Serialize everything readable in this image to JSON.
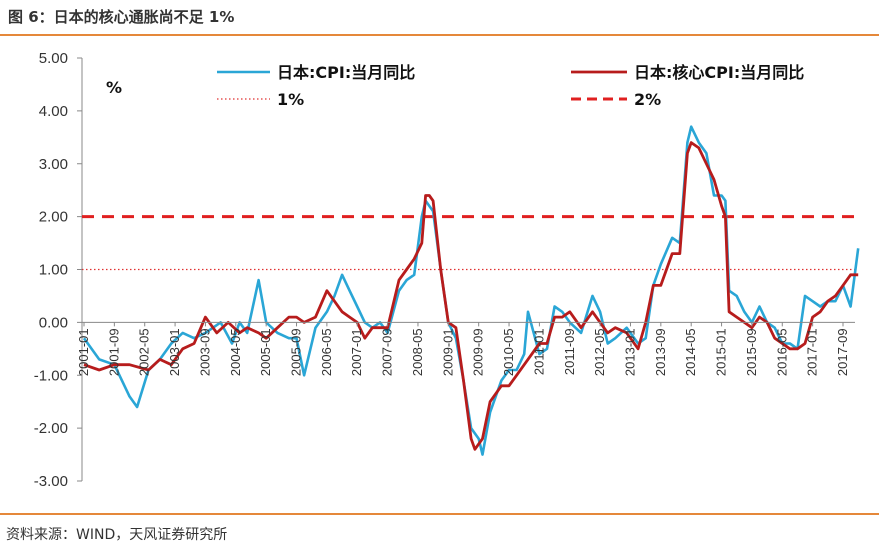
{
  "header": {
    "title": "图 6：日本的核心通胀尚不足 1%"
  },
  "footer": {
    "source": "资料来源：WIND，天风证券研究所"
  },
  "chart_data": {
    "type": "line",
    "unit_label": "%",
    "ylim": [
      -3,
      5
    ],
    "yticks": [
      "5.00",
      "4.00",
      "3.00",
      "2.00",
      "1.00",
      "0.00",
      "-1.00",
      "-2.00",
      "-3.00"
    ],
    "xticks": [
      "2001-01",
      "2001-09",
      "2002-05",
      "2003-01",
      "2003-09",
      "2004-05",
      "2005-01",
      "2005-09",
      "2006-05",
      "2007-01",
      "2007-09",
      "2008-05",
      "2009-01",
      "2009-09",
      "2010-05",
      "2011-01",
      "2011-09",
      "2012-05",
      "2013-01",
      "2013-09",
      "2014-05",
      "2015-01",
      "2015-09",
      "2016-05",
      "2017-01",
      "2017-09"
    ],
    "grid": false,
    "legend_position": "top",
    "series": [
      {
        "name": "日本:CPI:当月同比",
        "color": "#2aa6d6",
        "points": [
          [
            "2001-01",
            -0.3
          ],
          [
            "2001-05",
            -0.7
          ],
          [
            "2001-09",
            -0.8
          ],
          [
            "2002-01",
            -1.4
          ],
          [
            "2002-03",
            -1.6
          ],
          [
            "2002-06",
            -0.9
          ],
          [
            "2002-09",
            -0.7
          ],
          [
            "2002-12",
            -0.4
          ],
          [
            "2003-03",
            -0.2
          ],
          [
            "2003-06",
            -0.3
          ],
          [
            "2003-09",
            -0.2
          ],
          [
            "2004-01",
            0.0
          ],
          [
            "2004-04",
            -0.4
          ],
          [
            "2004-06",
            0.0
          ],
          [
            "2004-08",
            -0.2
          ],
          [
            "2004-11",
            0.8
          ],
          [
            "2005-01",
            0.0
          ],
          [
            "2005-04",
            -0.2
          ],
          [
            "2005-07",
            -0.3
          ],
          [
            "2005-09",
            -0.3
          ],
          [
            "2005-11",
            -1.0
          ],
          [
            "2006-02",
            -0.1
          ],
          [
            "2006-05",
            0.2
          ],
          [
            "2006-07",
            0.5
          ],
          [
            "2006-09",
            0.9
          ],
          [
            "2006-11",
            0.6
          ],
          [
            "2007-01",
            0.3
          ],
          [
            "2007-03",
            0.0
          ],
          [
            "2007-05",
            -0.1
          ],
          [
            "2007-07",
            0.0
          ],
          [
            "2007-09",
            -0.2
          ],
          [
            "2007-12",
            0.6
          ],
          [
            "2008-02",
            0.8
          ],
          [
            "2008-04",
            0.9
          ],
          [
            "2008-06",
            2.0
          ],
          [
            "2008-07",
            2.3
          ],
          [
            "2008-09",
            2.1
          ],
          [
            "2008-11",
            1.0
          ],
          [
            "2009-01",
            0.0
          ],
          [
            "2009-03",
            -0.3
          ],
          [
            "2009-05",
            -1.1
          ],
          [
            "2009-07",
            -2.0
          ],
          [
            "2009-09",
            -2.2
          ],
          [
            "2009-10",
            -2.5
          ],
          [
            "2009-12",
            -1.7
          ],
          [
            "2010-03",
            -1.1
          ],
          [
            "2010-05",
            -0.9
          ],
          [
            "2010-07",
            -0.9
          ],
          [
            "2010-09",
            -0.6
          ],
          [
            "2010-10",
            0.2
          ],
          [
            "2011-01",
            -0.6
          ],
          [
            "2011-03",
            -0.5
          ],
          [
            "2011-05",
            0.3
          ],
          [
            "2011-07",
            0.2
          ],
          [
            "2011-09",
            0.0
          ],
          [
            "2011-12",
            -0.2
          ],
          [
            "2012-03",
            0.5
          ],
          [
            "2012-05",
            0.2
          ],
          [
            "2012-07",
            -0.4
          ],
          [
            "2012-09",
            -0.3
          ],
          [
            "2012-12",
            -0.1
          ],
          [
            "2013-03",
            -0.4
          ],
          [
            "2013-05",
            -0.3
          ],
          [
            "2013-07",
            0.7
          ],
          [
            "2013-09",
            1.1
          ],
          [
            "2013-12",
            1.6
          ],
          [
            "2014-02",
            1.5
          ],
          [
            "2014-04",
            3.4
          ],
          [
            "2014-05",
            3.7
          ],
          [
            "2014-07",
            3.4
          ],
          [
            "2014-09",
            3.2
          ],
          [
            "2014-11",
            2.4
          ],
          [
            "2015-01",
            2.4
          ],
          [
            "2015-02",
            2.3
          ],
          [
            "2015-03",
            0.6
          ],
          [
            "2015-05",
            0.5
          ],
          [
            "2015-07",
            0.2
          ],
          [
            "2015-09",
            0.0
          ],
          [
            "2015-11",
            0.3
          ],
          [
            "2016-01",
            0.0
          ],
          [
            "2016-03",
            -0.1
          ],
          [
            "2016-05",
            -0.4
          ],
          [
            "2016-07",
            -0.4
          ],
          [
            "2016-09",
            -0.5
          ],
          [
            "2016-11",
            0.5
          ],
          [
            "2017-01",
            0.4
          ],
          [
            "2017-03",
            0.3
          ],
          [
            "2017-05",
            0.4
          ],
          [
            "2017-07",
            0.4
          ],
          [
            "2017-09",
            0.7
          ],
          [
            "2017-11",
            0.3
          ],
          [
            "2018-01",
            1.4
          ]
        ]
      },
      {
        "name": "日本:核心CPI:当月同比",
        "color": "#b71c1c",
        "points": [
          [
            "2001-01",
            -0.8
          ],
          [
            "2001-05",
            -0.9
          ],
          [
            "2001-09",
            -0.8
          ],
          [
            "2002-01",
            -0.8
          ],
          [
            "2002-06",
            -0.9
          ],
          [
            "2002-09",
            -0.7
          ],
          [
            "2002-12",
            -0.8
          ],
          [
            "2003-03",
            -0.5
          ],
          [
            "2003-06",
            -0.4
          ],
          [
            "2003-09",
            0.1
          ],
          [
            "2003-12",
            -0.2
          ],
          [
            "2004-03",
            0.0
          ],
          [
            "2004-06",
            -0.2
          ],
          [
            "2004-08",
            -0.1
          ],
          [
            "2004-11",
            -0.2
          ],
          [
            "2005-01",
            -0.3
          ],
          [
            "2005-04",
            -0.1
          ],
          [
            "2005-07",
            0.1
          ],
          [
            "2005-09",
            0.1
          ],
          [
            "2005-11",
            0.0
          ],
          [
            "2006-02",
            0.1
          ],
          [
            "2006-05",
            0.6
          ],
          [
            "2006-09",
            0.2
          ],
          [
            "2006-11",
            0.1
          ],
          [
            "2007-01",
            0.0
          ],
          [
            "2007-03",
            -0.3
          ],
          [
            "2007-05",
            -0.1
          ],
          [
            "2007-07",
            -0.1
          ],
          [
            "2007-09",
            -0.1
          ],
          [
            "2007-12",
            0.8
          ],
          [
            "2008-02",
            1.0
          ],
          [
            "2008-04",
            1.2
          ],
          [
            "2008-06",
            1.5
          ],
          [
            "2008-07",
            2.4
          ],
          [
            "2008-08",
            2.4
          ],
          [
            "2008-09",
            2.3
          ],
          [
            "2008-11",
            1.0
          ],
          [
            "2009-01",
            0.0
          ],
          [
            "2009-03",
            -0.1
          ],
          [
            "2009-05",
            -1.1
          ],
          [
            "2009-07",
            -2.2
          ],
          [
            "2009-08",
            -2.4
          ],
          [
            "2009-10",
            -2.2
          ],
          [
            "2009-12",
            -1.5
          ],
          [
            "2010-03",
            -1.2
          ],
          [
            "2010-05",
            -1.2
          ],
          [
            "2010-07",
            -1.0
          ],
          [
            "2010-09",
            -0.8
          ],
          [
            "2011-01",
            -0.4
          ],
          [
            "2011-03",
            -0.4
          ],
          [
            "2011-05",
            0.1
          ],
          [
            "2011-07",
            0.1
          ],
          [
            "2011-09",
            0.2
          ],
          [
            "2011-12",
            -0.1
          ],
          [
            "2012-03",
            0.2
          ],
          [
            "2012-05",
            0.0
          ],
          [
            "2012-07",
            -0.2
          ],
          [
            "2012-09",
            -0.1
          ],
          [
            "2012-12",
            -0.2
          ],
          [
            "2013-03",
            -0.5
          ],
          [
            "2013-05",
            0.0
          ],
          [
            "2013-07",
            0.7
          ],
          [
            "2013-09",
            0.7
          ],
          [
            "2013-12",
            1.3
          ],
          [
            "2014-02",
            1.3
          ],
          [
            "2014-04",
            3.2
          ],
          [
            "2014-05",
            3.4
          ],
          [
            "2014-07",
            3.3
          ],
          [
            "2014-09",
            3.0
          ],
          [
            "2014-11",
            2.7
          ],
          [
            "2015-01",
            2.2
          ],
          [
            "2015-02",
            2.0
          ],
          [
            "2015-03",
            0.2
          ],
          [
            "2015-05",
            0.1
          ],
          [
            "2015-07",
            0.0
          ],
          [
            "2015-09",
            -0.1
          ],
          [
            "2015-11",
            0.1
          ],
          [
            "2016-01",
            0.0
          ],
          [
            "2016-03",
            -0.3
          ],
          [
            "2016-05",
            -0.4
          ],
          [
            "2016-07",
            -0.5
          ],
          [
            "2016-09",
            -0.5
          ],
          [
            "2016-11",
            -0.4
          ],
          [
            "2017-01",
            0.1
          ],
          [
            "2017-03",
            0.2
          ],
          [
            "2017-05",
            0.4
          ],
          [
            "2017-07",
            0.5
          ],
          [
            "2017-09",
            0.7
          ],
          [
            "2017-11",
            0.9
          ],
          [
            "2018-01",
            0.9
          ]
        ]
      }
    ],
    "reference_lines": [
      {
        "name": "1%",
        "value": 1.0,
        "color": "#e03030",
        "style": "dotted"
      },
      {
        "name": "2%",
        "value": 2.0,
        "color": "#e02020",
        "style": "dashed"
      }
    ]
  }
}
